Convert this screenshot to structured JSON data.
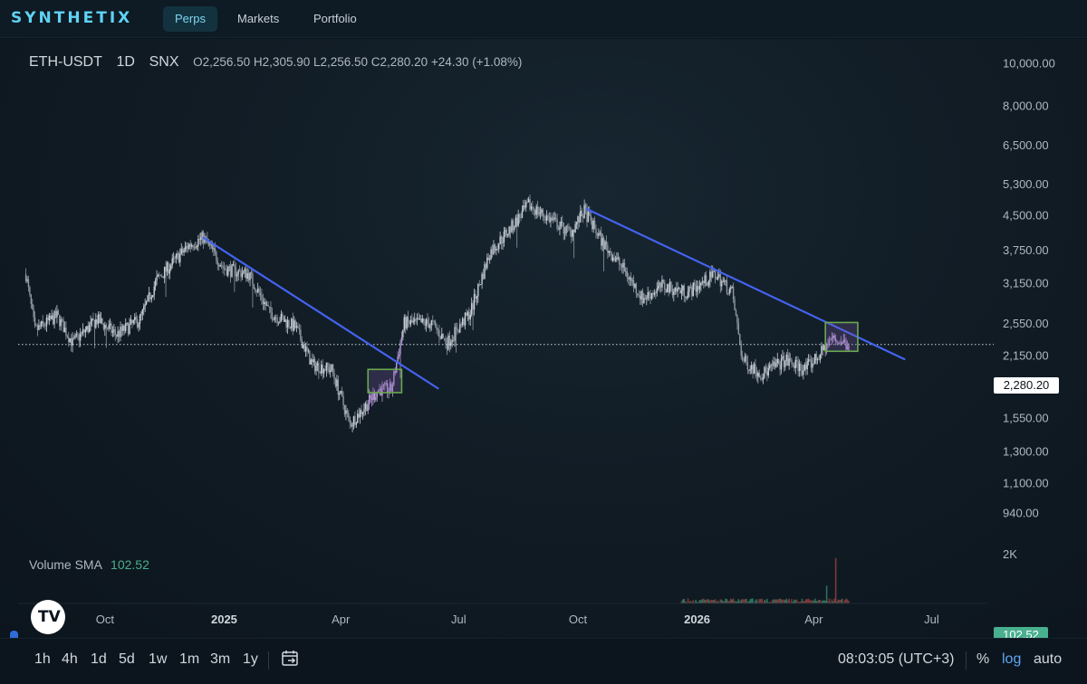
{
  "header": {
    "logo": "SYNTHETIX",
    "tabs": [
      {
        "label": "Perps",
        "active": true
      },
      {
        "label": "Markets",
        "active": false
      },
      {
        "label": "Portfolio",
        "active": false
      }
    ]
  },
  "legend": {
    "symbol": "ETH-USDT",
    "interval": "1D",
    "exchange": "SNX",
    "ohlc": "O2,256.50  H2,305.90  L2,256.50  C2,280.20  +24.30 (+1.08%)"
  },
  "volume": {
    "label": "Volume SMA",
    "value": "102.52",
    "axis_label": "2K"
  },
  "last_price_label": "2,280.20",
  "chart_data": {
    "type": "bar",
    "subtype": "ohlc-candlestick",
    "symbol": "ETH-USDT",
    "interval": "1D",
    "scale": "log",
    "ylim": [
      900,
      10500
    ],
    "y_ticks": [
      "10,000.00",
      "8,000.00",
      "6,500.00",
      "5,300.00",
      "4,500.00",
      "3,750.00",
      "3,150.00",
      "2,550.00",
      "2,150.00",
      "1,850.00",
      "1,550.00",
      "1,300.00",
      "1,100.00",
      "940.00"
    ],
    "x_ticks": [
      "Oct",
      "2025",
      "Apr",
      "Jul",
      "Oct",
      "2026",
      "Apr",
      "Jul"
    ],
    "last_close": 2280.2,
    "price_path": [
      {
        "x": "2024-08-01",
        "y": 3300
      },
      {
        "x": "2024-08-08",
        "y": 2450
      },
      {
        "x": "2024-08-25",
        "y": 2650
      },
      {
        "x": "2024-09-06",
        "y": 2300
      },
      {
        "x": "2024-09-25",
        "y": 2600
      },
      {
        "x": "2024-10-10",
        "y": 2400
      },
      {
        "x": "2024-10-28",
        "y": 2600
      },
      {
        "x": "2024-11-10",
        "y": 3200
      },
      {
        "x": "2024-12-05",
        "y": 3850
      },
      {
        "x": "2024-12-16",
        "y": 4000
      },
      {
        "x": "2025-01-01",
        "y": 3400
      },
      {
        "x": "2025-01-20",
        "y": 3300
      },
      {
        "x": "2025-02-05",
        "y": 2700
      },
      {
        "x": "2025-02-25",
        "y": 2500
      },
      {
        "x": "2025-03-10",
        "y": 2050
      },
      {
        "x": "2025-03-25",
        "y": 2000
      },
      {
        "x": "2025-04-08",
        "y": 1500
      },
      {
        "x": "2025-04-20",
        "y": 1650
      },
      {
        "x": "2025-04-30",
        "y": 1800
      },
      {
        "x": "2025-05-10",
        "y": 1800
      },
      {
        "x": "2025-05-20",
        "y": 2550
      },
      {
        "x": "2025-06-10",
        "y": 2550
      },
      {
        "x": "2025-06-22",
        "y": 2300
      },
      {
        "x": "2025-07-10",
        "y": 2700
      },
      {
        "x": "2025-07-25",
        "y": 3700
      },
      {
        "x": "2025-08-10",
        "y": 4200
      },
      {
        "x": "2025-08-24",
        "y": 4750
      },
      {
        "x": "2025-09-10",
        "y": 4400
      },
      {
        "x": "2025-09-25",
        "y": 4100
      },
      {
        "x": "2025-10-06",
        "y": 4600
      },
      {
        "x": "2025-10-20",
        "y": 3900
      },
      {
        "x": "2025-11-05",
        "y": 3400
      },
      {
        "x": "2025-11-20",
        "y": 2900
      },
      {
        "x": "2025-12-05",
        "y": 3100
      },
      {
        "x": "2025-12-25",
        "y": 3000
      },
      {
        "x": "2026-01-15",
        "y": 3300
      },
      {
        "x": "2026-01-28",
        "y": 3000
      },
      {
        "x": "2026-02-05",
        "y": 2100
      },
      {
        "x": "2026-02-20",
        "y": 1950
      },
      {
        "x": "2026-03-10",
        "y": 2100
      },
      {
        "x": "2026-03-25",
        "y": 2000
      },
      {
        "x": "2026-04-05",
        "y": 2150
      },
      {
        "x": "2026-04-15",
        "y": 2350
      },
      {
        "x": "2026-04-28",
        "y": 2280
      }
    ],
    "trendlines": [
      {
        "from": {
          "x": "2024-12-16",
          "y": 4000
        },
        "to": {
          "x": "2025-06-15",
          "y": 1810
        },
        "color": "#4463f0"
      },
      {
        "from": {
          "x": "2025-10-08",
          "y": 4650
        },
        "to": {
          "x": "2026-06-10",
          "y": 2110
        },
        "color": "#4463f0"
      }
    ],
    "highlight_boxes": [
      {
        "x0": "2025-04-22",
        "x1": "2025-05-18",
        "y0": 1770,
        "y1": 2000,
        "color": "#6aa84f"
      },
      {
        "x0": "2026-04-10",
        "x1": "2026-05-05",
        "y0": 2200,
        "y1": 2560,
        "color": "#6aa84f"
      }
    ],
    "volume_ylim": [
      0,
      2000
    ],
    "volume_sma": 102.52,
    "grid": false,
    "legend_placement": "top-left"
  },
  "bottombar": {
    "timeframes": [
      "1h",
      "4h",
      "1d",
      "5d",
      "1w",
      "1m",
      "3m",
      "1y"
    ],
    "clock": "08:03:05 (UTC+3)",
    "options": [
      {
        "label": "%",
        "on": false
      },
      {
        "label": "log",
        "on": true
      },
      {
        "label": "auto",
        "on": false
      }
    ]
  },
  "icons": {
    "calendar": "calendar-goto-icon",
    "settings": "gear-icon",
    "brand": "tradingview-logo"
  },
  "colors": {
    "accent": "#5fd3f3",
    "trendline": "#4463f0",
    "highlight": "#6aa84f",
    "volume": "#49b08f"
  }
}
